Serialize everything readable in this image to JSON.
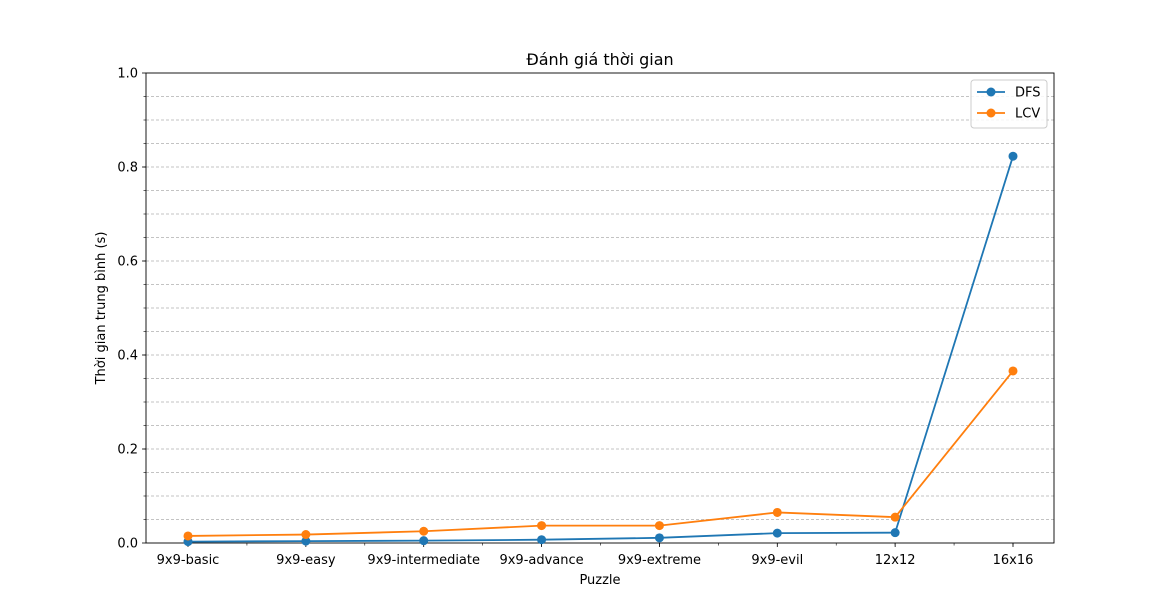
{
  "chart_data": {
    "type": "line",
    "title": "Đánh giá thời gian",
    "xlabel": "Puzzle",
    "ylabel": "Thời gian trung bình (s)",
    "categories": [
      "9x9-basic",
      "9x9-easy",
      "9x9-intermediate",
      "9x9-advance",
      "9x9-extreme",
      "9x9-evil",
      "12x12",
      "16x16"
    ],
    "ylim": [
      0,
      1.0
    ],
    "yticks": [
      "0.0",
      "0.2",
      "0.4",
      "0.6",
      "0.8",
      "1.0"
    ],
    "grid": "horizontal-minor-dashed",
    "legend_position": "top-right",
    "series": [
      {
        "name": "DFS",
        "color": "#1f77b4",
        "values": [
          0.003,
          0.004,
          0.005,
          0.007,
          0.011,
          0.021,
          0.022,
          0.823
        ]
      },
      {
        "name": "LCV",
        "color": "#ff7f0e",
        "values": [
          0.015,
          0.018,
          0.025,
          0.037,
          0.037,
          0.065,
          0.055,
          0.366
        ]
      }
    ]
  }
}
